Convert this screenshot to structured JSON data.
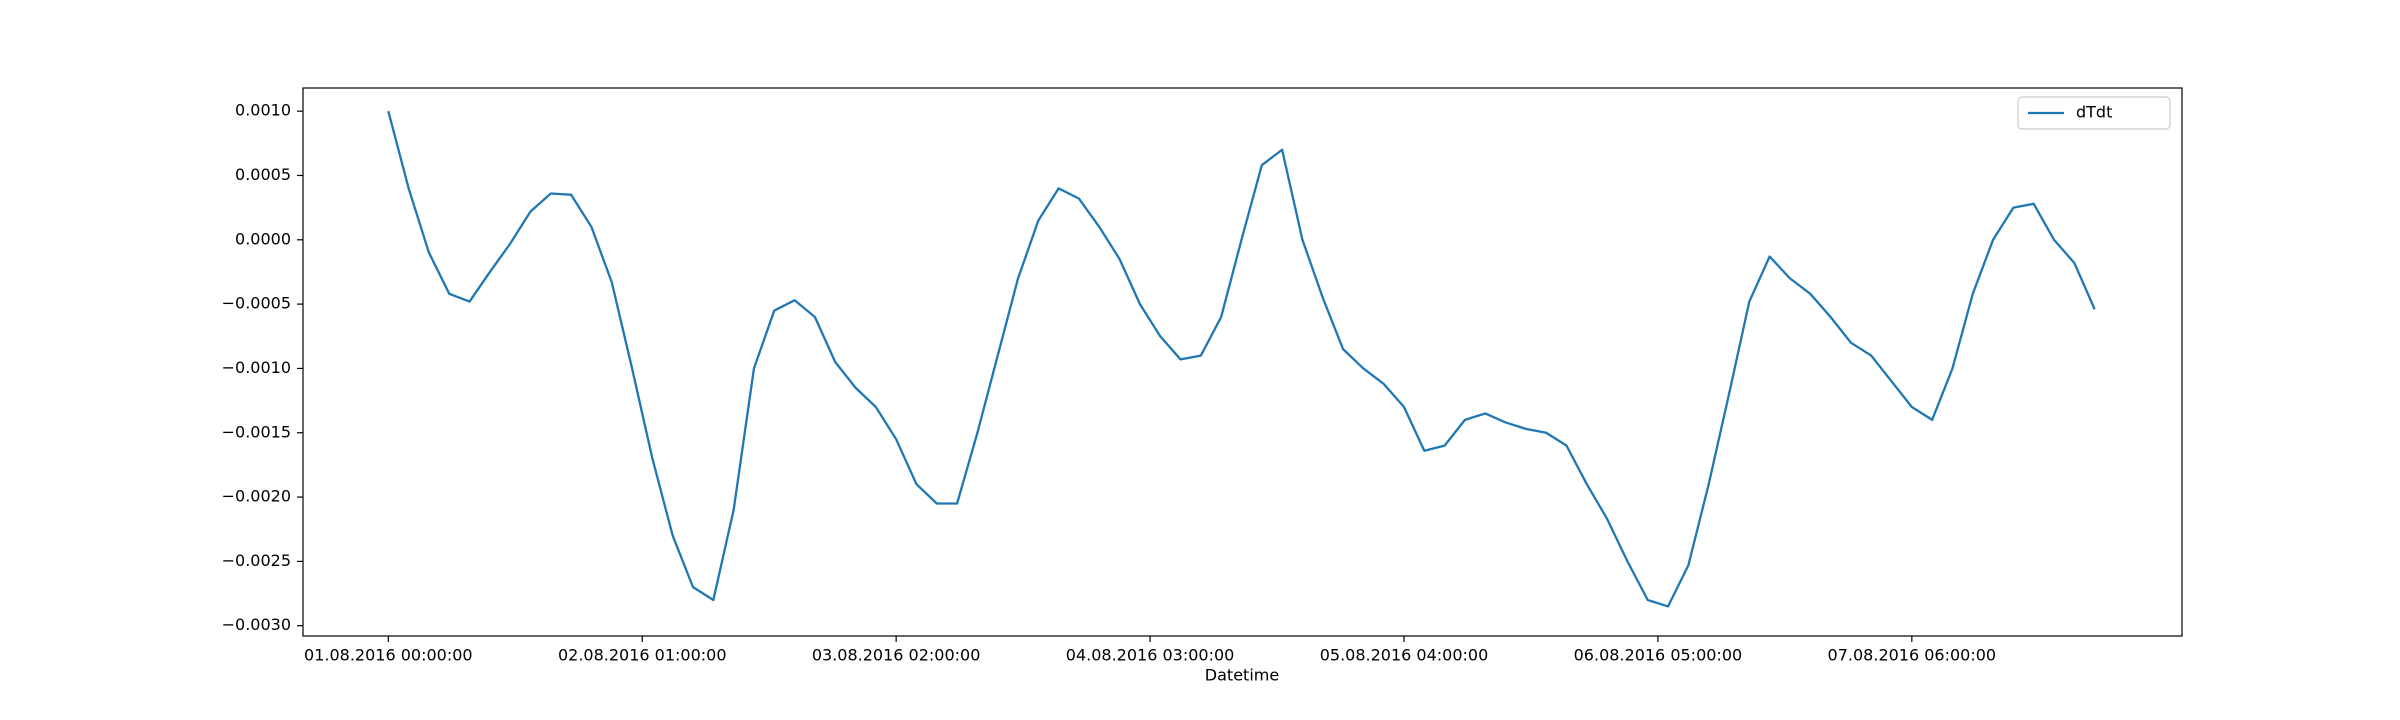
{
  "chart_data": {
    "type": "line",
    "xlabel": "Datetime",
    "x": [
      "01.08.2016 00:00:00",
      "01.08.2016 02:00:00",
      "01.08.2016 04:00:00",
      "01.08.2016 06:00:00",
      "01.08.2016 08:00:00",
      "01.08.2016 10:00:00",
      "01.08.2016 12:00:00",
      "01.08.2016 14:00:00",
      "01.08.2016 16:00:00",
      "01.08.2016 18:00:00",
      "01.08.2016 20:00:00",
      "01.08.2016 22:00:00",
      "02.08.2016 00:00:00",
      "02.08.2016 02:00:00",
      "02.08.2016 04:00:00",
      "02.08.2016 06:00:00",
      "02.08.2016 08:00:00",
      "02.08.2016 10:00:00",
      "02.08.2016 12:00:00",
      "02.08.2016 14:00:00",
      "02.08.2016 16:00:00",
      "02.08.2016 18:00:00",
      "02.08.2016 20:00:00",
      "02.08.2016 22:00:00",
      "03.08.2016 00:00:00",
      "03.08.2016 02:00:00",
      "03.08.2016 04:00:00",
      "03.08.2016 06:00:00",
      "03.08.2016 08:00:00",
      "03.08.2016 10:00:00",
      "03.08.2016 12:00:00",
      "03.08.2016 14:00:00",
      "03.08.2016 16:00:00",
      "03.08.2016 18:00:00",
      "03.08.2016 20:00:00",
      "03.08.2016 22:00:00",
      "04.08.2016 00:00:00",
      "04.08.2016 02:00:00",
      "04.08.2016 04:00:00",
      "04.08.2016 06:00:00",
      "04.08.2016 08:00:00",
      "04.08.2016 10:00:00",
      "04.08.2016 12:00:00",
      "04.08.2016 14:00:00",
      "04.08.2016 16:00:00",
      "04.08.2016 18:00:00",
      "04.08.2016 20:00:00",
      "04.08.2016 22:00:00",
      "05.08.2016 00:00:00",
      "05.08.2016 02:00:00",
      "05.08.2016 04:00:00",
      "05.08.2016 06:00:00",
      "05.08.2016 08:00:00",
      "05.08.2016 10:00:00",
      "05.08.2016 12:00:00",
      "05.08.2016 14:00:00",
      "05.08.2016 16:00:00",
      "05.08.2016 18:00:00",
      "05.08.2016 20:00:00",
      "05.08.2016 22:00:00",
      "06.08.2016 00:00:00",
      "06.08.2016 02:00:00",
      "06.08.2016 04:00:00",
      "06.08.2016 06:00:00",
      "06.08.2016 08:00:00",
      "06.08.2016 10:00:00",
      "06.08.2016 12:00:00",
      "06.08.2016 14:00:00",
      "06.08.2016 16:00:00",
      "06.08.2016 18:00:00",
      "06.08.2016 20:00:00",
      "06.08.2016 22:00:00",
      "07.08.2016 00:00:00",
      "07.08.2016 02:00:00",
      "07.08.2016 04:00:00",
      "07.08.2016 06:00:00",
      "07.08.2016 08:00:00",
      "07.08.2016 10:00:00",
      "07.08.2016 12:00:00",
      "07.08.2016 14:00:00",
      "07.08.2016 16:00:00",
      "07.08.2016 18:00:00",
      "07.08.2016 20:00:00",
      "07.08.2016 22:00:00",
      "08.08.2016 00:00:00"
    ],
    "series": [
      {
        "name": "dTdt",
        "color": "#1f77b4",
        "values": [
          0.001,
          0.0004,
          -0.0001,
          -0.00042,
          -0.00048,
          -0.00025,
          -3e-05,
          0.00022,
          0.00036,
          0.00035,
          0.0001,
          -0.00033,
          -0.001,
          -0.0017,
          -0.0023,
          -0.0027,
          -0.0028,
          -0.0021,
          -0.001,
          -0.00055,
          -0.00047,
          -0.0006,
          -0.00095,
          -0.00115,
          -0.0013,
          -0.00155,
          -0.0019,
          -0.00205,
          -0.00205,
          -0.0015,
          -0.0009,
          -0.0003,
          0.00015,
          0.0004,
          0.00032,
          0.0001,
          -0.00015,
          -0.0005,
          -0.00075,
          -0.00093,
          -0.0009,
          -0.0006,
          0.0,
          0.00058,
          0.0007,
          0.0,
          -0.00045,
          -0.00085,
          -0.001,
          -0.00112,
          -0.0013,
          -0.00164,
          -0.0016,
          -0.0014,
          -0.00135,
          -0.00142,
          -0.00147,
          -0.0015,
          -0.0016,
          -0.0019,
          -0.00217,
          -0.0025,
          -0.0028,
          -0.00285,
          -0.00253,
          -0.0019,
          -0.0012,
          -0.00048,
          -0.00013,
          -0.0003,
          -0.00042,
          -0.0006,
          -0.0008,
          -0.0009,
          -0.0011,
          -0.0013,
          -0.0014,
          -0.001,
          -0.00042,
          0.0,
          0.00025,
          0.00028,
          0.0,
          -0.00018,
          -0.00054
        ]
      }
    ],
    "xlim": [
      "31.07.2016 15:36:00",
      "08.08.2016 08:36:00"
    ],
    "xticks": [
      "01.08.2016 00:00:00",
      "02.08.2016 01:00:00",
      "03.08.2016 02:00:00",
      "04.08.2016 03:00:00",
      "05.08.2016 04:00:00",
      "06.08.2016 05:00:00",
      "07.08.2016 06:00:00"
    ],
    "ylim": [
      -0.00308,
      0.00118
    ],
    "yticks": [
      {
        "value": -0.003,
        "label": "−0.0030"
      },
      {
        "value": -0.0025,
        "label": "−0.0025"
      },
      {
        "value": -0.002,
        "label": "−0.0020"
      },
      {
        "value": -0.0015,
        "label": "−0.0015"
      },
      {
        "value": -0.001,
        "label": "−0.0010"
      },
      {
        "value": -0.0005,
        "label": "−0.0005"
      },
      {
        "value": 0,
        "label": "0.0000"
      },
      {
        "value": 0.0005,
        "label": "0.0005"
      },
      {
        "value": 0.001,
        "label": "0.0010"
      }
    ],
    "legend": "upper right"
  }
}
